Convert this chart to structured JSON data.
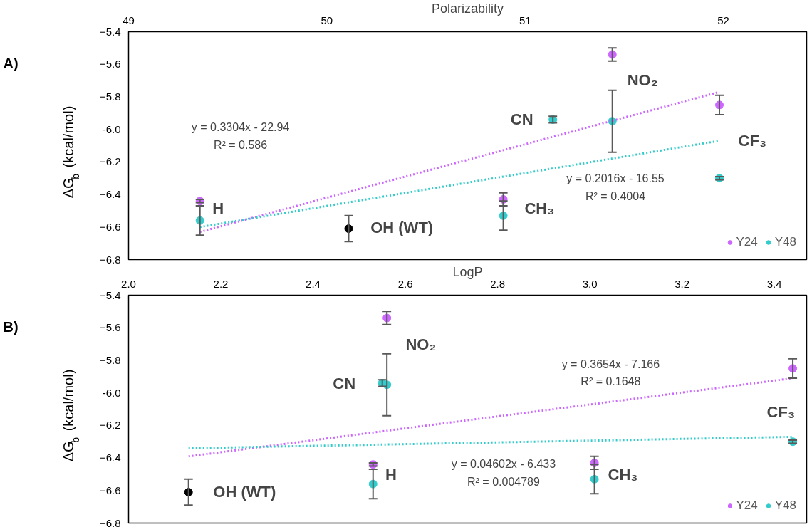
{
  "chart_data": [
    {
      "type": "scatter",
      "title": "Polarizability",
      "ylabel": "ΔG$_{b}$ (kcal/mol)",
      "marker": "circle",
      "legend": "bottom right",
      "grid": false,
      "xlim": [
        49,
        52.42
      ],
      "xticks": [
        49,
        50,
        51,
        52
      ],
      "ylim": [
        -6.8,
        -5.4
      ],
      "yticks": [
        -5.4,
        -5.6,
        -5.8,
        {
          "value": -6.0,
          "label": "-6.0"
        },
        -6.2,
        -6.4,
        -6.6,
        -6.8
      ],
      "series": [
        {
          "name": "Y24",
          "color": "#cc66ff",
          "x": [
            49.36,
            50.89,
            51.44,
            51.98
          ],
          "values": [
            -6.44,
            -6.43,
            -5.54,
            -5.85
          ],
          "errors": [
            0.01,
            0.04,
            0.04,
            0.06
          ]
        },
        {
          "name": "Y48",
          "color": "#33cccc",
          "x": [
            49.36,
            50.89,
            51.14,
            51.44,
            51.98
          ],
          "values": [
            -6.56,
            -6.53,
            -5.94,
            -5.95,
            -6.3
          ],
          "errors": [
            0.09,
            0.09,
            0.02,
            0.19,
            0.01
          ]
        },
        {
          "color": "#000000",
          "x": [
            50.11
          ],
          "values": [
            -6.61
          ],
          "errors": [
            0.08
          ]
        },
        {
          "type": "line",
          "marker": "none",
          "color": "#cc66ff",
          "line_style": "dotted",
          "x": [
            49.36,
            51.98
          ],
          "values": [
            -6.63,
            -5.77
          ]
        },
        {
          "type": "line",
          "marker": "none",
          "color": "#33cccc",
          "line_style": "dotted",
          "x": [
            49.36,
            51.98
          ],
          "values": [
            -6.6,
            -6.07
          ]
        }
      ],
      "annotations": [
        "A)",
        "H",
        "OH (WT)",
        "CH₃",
        "CN",
        "NO₂",
        "CF₃",
        "y = 0.3304x - 22.94",
        "R² = 0.586",
        "y = 0.2016x - 16.55",
        "R² = 0.4004"
      ]
    },
    {
      "type": "scatter",
      "title": "LogP",
      "ylabel": "ΔG$_{b}$ (kcal/mol)",
      "marker": "circle",
      "legend": "bottom right",
      "grid": false,
      "xlim": [
        2.0,
        3.47
      ],
      "xticks": [
        {
          "value": 2.0,
          "label": "2.0"
        },
        2.2,
        2.4,
        2.6,
        2.8,
        {
          "value": 3.0,
          "label": "3.0"
        },
        3.2,
        3.4
      ],
      "ylim": [
        -6.8,
        -5.4
      ],
      "yticks": [
        -5.4,
        -5.6,
        -5.8,
        {
          "value": -6.0,
          "label": "-6.0"
        },
        -6.2,
        -6.4,
        -6.6,
        -6.8
      ],
      "series": [
        {
          "name": "Y24",
          "color": "#cc66ff",
          "x": [
            2.53,
            3.01,
            2.56,
            3.44
          ],
          "values": [
            -6.44,
            -6.43,
            -5.54,
            -5.85
          ],
          "errors": [
            0.01,
            0.04,
            0.04,
            0.06
          ]
        },
        {
          "name": "Y48",
          "color": "#33cccc",
          "x": [
            2.53,
            3.01,
            2.55,
            2.56,
            3.44
          ],
          "values": [
            -6.56,
            -6.53,
            -5.94,
            -5.95,
            -6.3
          ],
          "errors": [
            0.09,
            0.09,
            0.02,
            0.19,
            0.01
          ]
        },
        {
          "color": "#000000",
          "x": [
            2.13
          ],
          "values": [
            -6.61
          ],
          "errors": [
            0.08
          ]
        },
        {
          "type": "line",
          "marker": "none",
          "color": "#cc66ff",
          "line_style": "dotted",
          "x": [
            2.13,
            3.44
          ],
          "values": [
            -6.39,
            -5.91
          ]
        },
        {
          "type": "line",
          "marker": "none",
          "color": "#33cccc",
          "line_style": "dotted",
          "x": [
            2.13,
            3.44
          ],
          "values": [
            -6.34,
            -6.27
          ]
        }
      ],
      "annotations": [
        "B)",
        "NO₂",
        "CN",
        "OH (WT)",
        "H",
        "CH₃",
        "CF₃",
        "y = 0.3654x - 7.166",
        "R² = 0.1648",
        "y = 0.04602x - 6.433",
        "R² = 0.004789"
      ]
    }
  ]
}
